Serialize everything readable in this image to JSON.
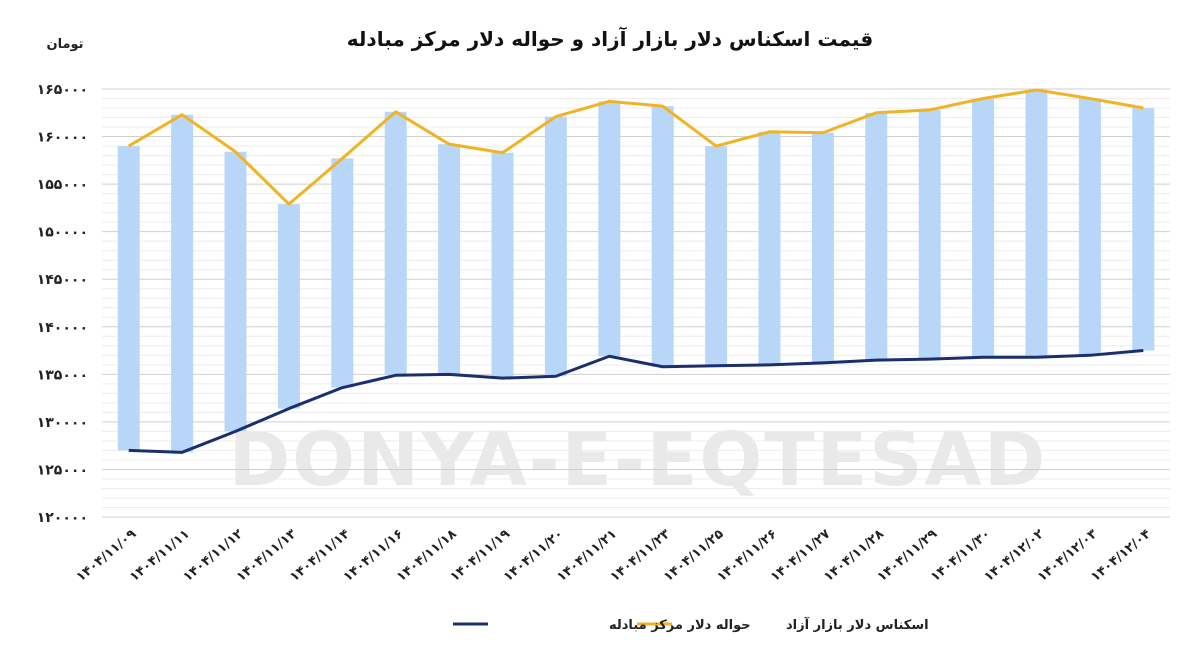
{
  "chart_data": {
    "type": "bar+line",
    "title": "قیمت اسکناس دلار بازار آزاد و حواله دلار مرکز مبادله",
    "unit_label": "تومان",
    "watermark": "DONYA-E-EQTESAD",
    "categories": [
      "۱۴۰۴/۱۱/۰۹",
      "۱۴۰۴/۱۱/۱۱",
      "۱۴۰۴/۱۱/۱۲",
      "۱۴۰۴/۱۱/۱۳",
      "۱۴۰۴/۱۱/۱۴",
      "۱۴۰۴/۱۱/۱۶",
      "۱۴۰۴/۱۱/۱۸",
      "۱۴۰۴/۱۱/۱۹",
      "۱۴۰۴/۱۱/۲۰",
      "۱۴۰۴/۱۱/۲۱",
      "۱۴۰۴/۱۱/۲۳",
      "۱۴۰۴/۱۱/۲۵",
      "۱۴۰۴/۱۱/۲۶",
      "۱۴۰۴/۱۱/۲۷",
      "۱۴۰۴/۱۱/۲۸",
      "۱۴۰۴/۱۱/۲۹",
      "۱۴۰۴/۱۱/۳۰",
      "۱۴۰۴/۱۲/۰۲",
      "۱۴۰۴/۱۲/۰۳",
      "۱۴۰۴/۱۲/۰۴"
    ],
    "series": [
      {
        "name": "اسکناس دلار بازار آزاد",
        "color": "#f0b323",
        "values": [
          159000,
          162300,
          158400,
          152900,
          157700,
          162600,
          159200,
          158300,
          162100,
          163700,
          163200,
          159000,
          160500,
          160400,
          162500,
          162800,
          164000,
          164900,
          164000,
          163000
        ]
      },
      {
        "name": "حواله دلار مرکز مبادله",
        "color": "#1b2f6e",
        "values": [
          127000,
          126800,
          129000,
          131400,
          133600,
          134900,
          135000,
          134600,
          134800,
          136900,
          135800,
          135900,
          136000,
          136200,
          136500,
          136600,
          136800,
          136800,
          137000,
          137500
        ]
      }
    ],
    "band_color": "#b8d7f8",
    "yticks": [
      "۱۲۰۰۰۰",
      "۱۲۵۰۰۰",
      "۱۳۰۰۰۰",
      "۱۳۵۰۰۰",
      "۱۴۰۰۰۰",
      "۱۴۵۰۰۰",
      "۱۵۰۰۰۰",
      "۱۵۵۰۰۰",
      "۱۶۰۰۰۰",
      "۱۶۵۰۰۰"
    ],
    "ylim": [
      120000,
      165000
    ],
    "grid": true,
    "legend_position": "bottom"
  }
}
